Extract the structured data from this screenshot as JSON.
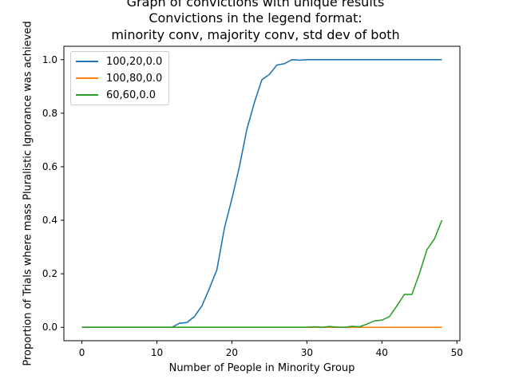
{
  "chart_data": {
    "type": "line",
    "title_lines": [
      "Graph of convictions with unique results",
      "Convictions in the legend format:",
      "minority conv, majority conv, std dev of both"
    ],
    "xlabel": "Number of People in Minority Group",
    "ylabel": "Proportion of Trials where mass Pluralistic Ignorance was achieved",
    "xlim": [
      -2.4,
      50.4
    ],
    "ylim": [
      -0.05,
      1.05
    ],
    "xticks": [
      0,
      10,
      20,
      30,
      40,
      50
    ],
    "yticks": [
      0.0,
      0.2,
      0.4,
      0.6,
      0.8,
      1.0
    ],
    "xtick_labels": [
      "0",
      "10",
      "20",
      "30",
      "40",
      "50"
    ],
    "ytick_labels": [
      "0.0",
      "0.2",
      "0.4",
      "0.6",
      "0.8",
      "1.0"
    ],
    "grid": false,
    "legend_position": "top-left",
    "x": [
      0,
      1,
      2,
      3,
      4,
      5,
      6,
      7,
      8,
      9,
      10,
      11,
      12,
      13,
      14,
      15,
      16,
      17,
      18,
      19,
      20,
      21,
      22,
      23,
      24,
      25,
      26,
      27,
      28,
      29,
      30,
      31,
      32,
      33,
      34,
      35,
      36,
      37,
      38,
      39,
      40,
      41,
      42,
      43,
      44,
      45,
      46,
      47,
      48
    ],
    "series": [
      {
        "name": "100,20,0.0",
        "color": "#1f77b4",
        "values": [
          0,
          0,
          0,
          0,
          0,
          0,
          0,
          0,
          0,
          0,
          0,
          0,
          0,
          0.015,
          0.018,
          0.04,
          0.08,
          0.145,
          0.215,
          0.37,
          0.48,
          0.6,
          0.74,
          0.84,
          0.925,
          0.945,
          0.98,
          0.985,
          1.0,
          0.998,
          1.0,
          1.0,
          1.0,
          1.0,
          1.0,
          1.0,
          1.0,
          1.0,
          1.0,
          1.0,
          1.0,
          1.0,
          1.0,
          1.0,
          1.0,
          1.0,
          1.0,
          1.0,
          1.0
        ]
      },
      {
        "name": "100,80,0.0",
        "color": "#ff7f0e",
        "values": [
          0,
          0,
          0,
          0,
          0,
          0,
          0,
          0,
          0,
          0,
          0,
          0,
          0,
          0,
          0,
          0,
          0,
          0,
          0,
          0,
          0,
          0,
          0,
          0,
          0,
          0,
          0,
          0,
          0,
          0,
          0,
          0,
          0,
          0,
          0,
          0,
          0,
          0,
          0,
          0,
          0,
          0,
          0,
          0,
          0,
          0,
          0,
          0,
          0
        ]
      },
      {
        "name": "60,60,0.0",
        "color": "#2ca02c",
        "values": [
          0,
          0,
          0,
          0,
          0,
          0,
          0,
          0,
          0,
          0,
          0,
          0,
          0,
          0,
          0,
          0,
          0,
          0,
          0,
          0,
          0,
          0,
          0,
          0,
          0,
          0,
          0,
          0,
          0,
          0,
          0,
          0.002,
          0,
          0.003,
          0.001,
          0,
          0.004,
          0.002,
          0.012,
          0.024,
          0.027,
          0.04,
          0.08,
          0.123,
          0.123,
          0.2,
          0.29,
          0.33,
          0.4
        ]
      }
    ]
  }
}
